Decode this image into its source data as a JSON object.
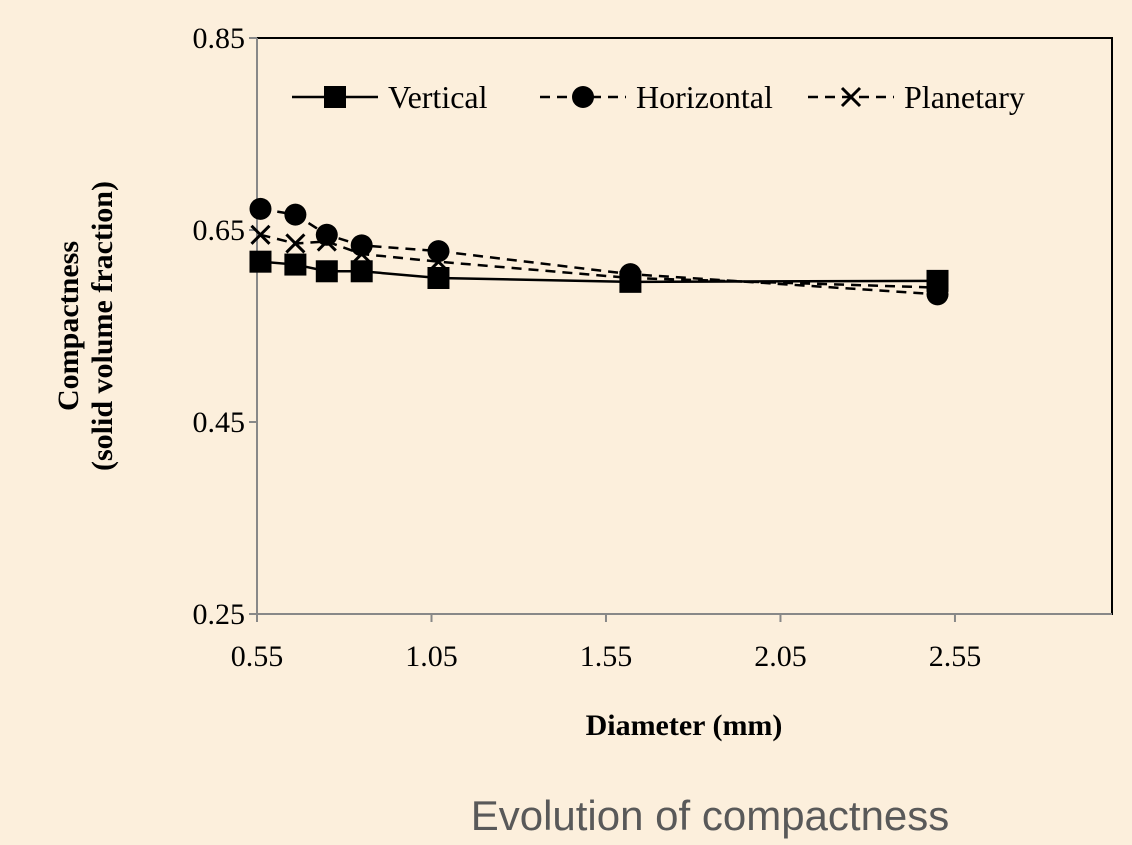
{
  "chart_data": {
    "type": "line",
    "xlabel": "Diameter (mm)",
    "ylabel": [
      "Compactness",
      "(solid volume fraction)"
    ],
    "caption": "Evolution of compactness",
    "xlim": [
      0.55,
      3.0
    ],
    "xticks": [
      0.55,
      1.05,
      1.55,
      2.05,
      2.55
    ],
    "ylim": [
      0.25,
      0.85
    ],
    "yticks": [
      0.25,
      0.45,
      0.65,
      0.85
    ],
    "x": [
      0.56,
      0.66,
      0.75,
      0.85,
      1.07,
      1.62,
      2.5
    ],
    "legend": "top",
    "series": [
      {
        "name": "Vertical",
        "color": "#000000",
        "marker": "square",
        "dash": "solid",
        "values": [
          0.617,
          0.614,
          0.607,
          0.607,
          0.6,
          0.596,
          0.597
        ]
      },
      {
        "name": "Horizontal",
        "color": "#000000",
        "marker": "circle",
        "dash": "dashed",
        "values": [
          0.672,
          0.666,
          0.645,
          0.634,
          0.628,
          0.604,
          0.583
        ]
      },
      {
        "name": "Planetary",
        "color": "#000000",
        "marker": "x",
        "dash": "dashed",
        "values": [
          0.645,
          0.636,
          0.638,
          0.625,
          0.617,
          0.6,
          0.59
        ]
      }
    ]
  }
}
